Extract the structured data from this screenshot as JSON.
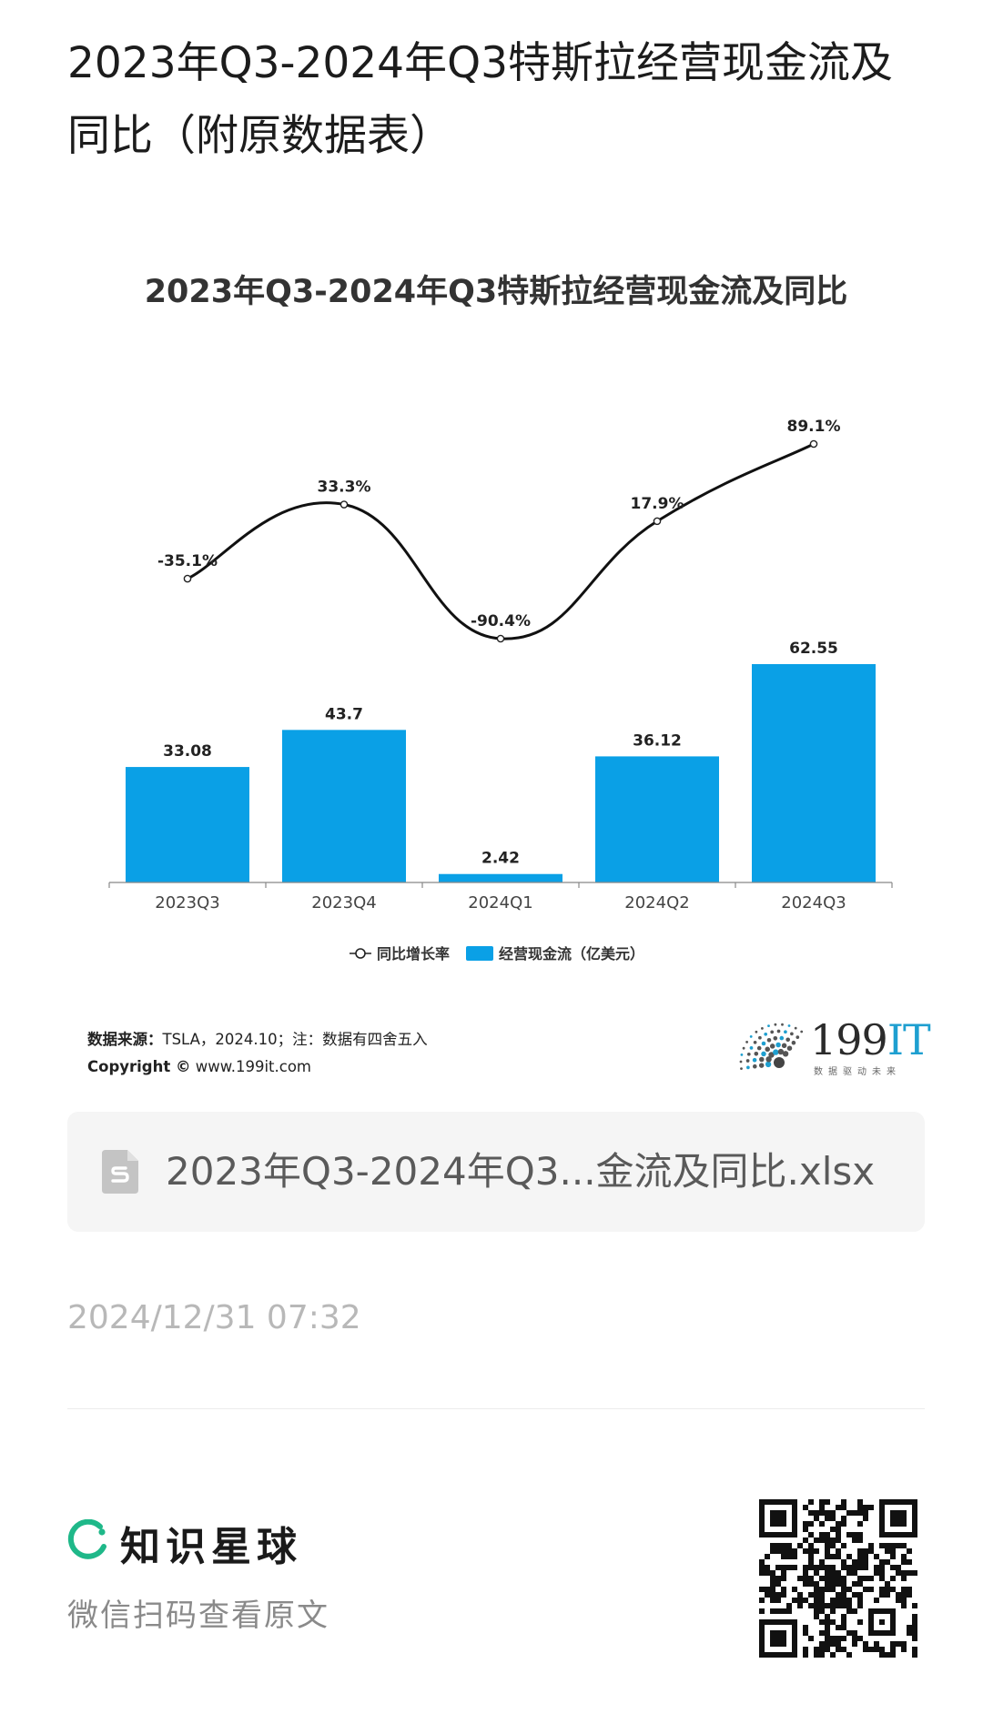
{
  "page": {
    "title": "2023年Q3-2024年Q3特斯拉经营现金流及同比（附原数据表）"
  },
  "chart_data": {
    "type": "bar",
    "title": "2023年Q3-2024年Q3特斯拉经营现金流及同比",
    "categories": [
      "2023Q3",
      "2023Q4",
      "2024Q1",
      "2024Q2",
      "2024Q3"
    ],
    "series": [
      {
        "name": "经营现金流（亿美元）",
        "type": "bar",
        "values": [
          33.08,
          43.7,
          2.42,
          36.12,
          62.55
        ],
        "labels": [
          "33.08",
          "43.7",
          "2.42",
          "36.12",
          "62.55"
        ],
        "color": "#0aa0e6"
      },
      {
        "name": "同比增长率",
        "type": "line",
        "values": [
          -35.1,
          33.3,
          -90.4,
          17.9,
          89.1
        ],
        "labels": [
          "-35.1%",
          "33.3%",
          "-90.4%",
          "17.9%",
          "89.1%"
        ],
        "color": "#111111"
      }
    ],
    "legend": [
      "同比增长率",
      "经营现金流（亿美元）"
    ],
    "legend_position": "bottom",
    "grid": false
  },
  "source": {
    "label": "数据来源：",
    "text": "TSLA，2024.10；注：数据有四舍五入",
    "copyright_label": "Copyright ©",
    "copyright_site": "www.199it.com"
  },
  "logo": {
    "name_num": "199",
    "name_it": "IT",
    "tagline": "数据驱动未来"
  },
  "attachment": {
    "icon": "spreadsheet-file-icon",
    "filename": "2023年Q3-2024年Q3...金流及同比.xlsx"
  },
  "timestamp": "2024/12/31 07:32",
  "footer": {
    "brand": "知识星球",
    "subtitle": "微信扫码查看原文",
    "brand_color": "#1fb889"
  }
}
